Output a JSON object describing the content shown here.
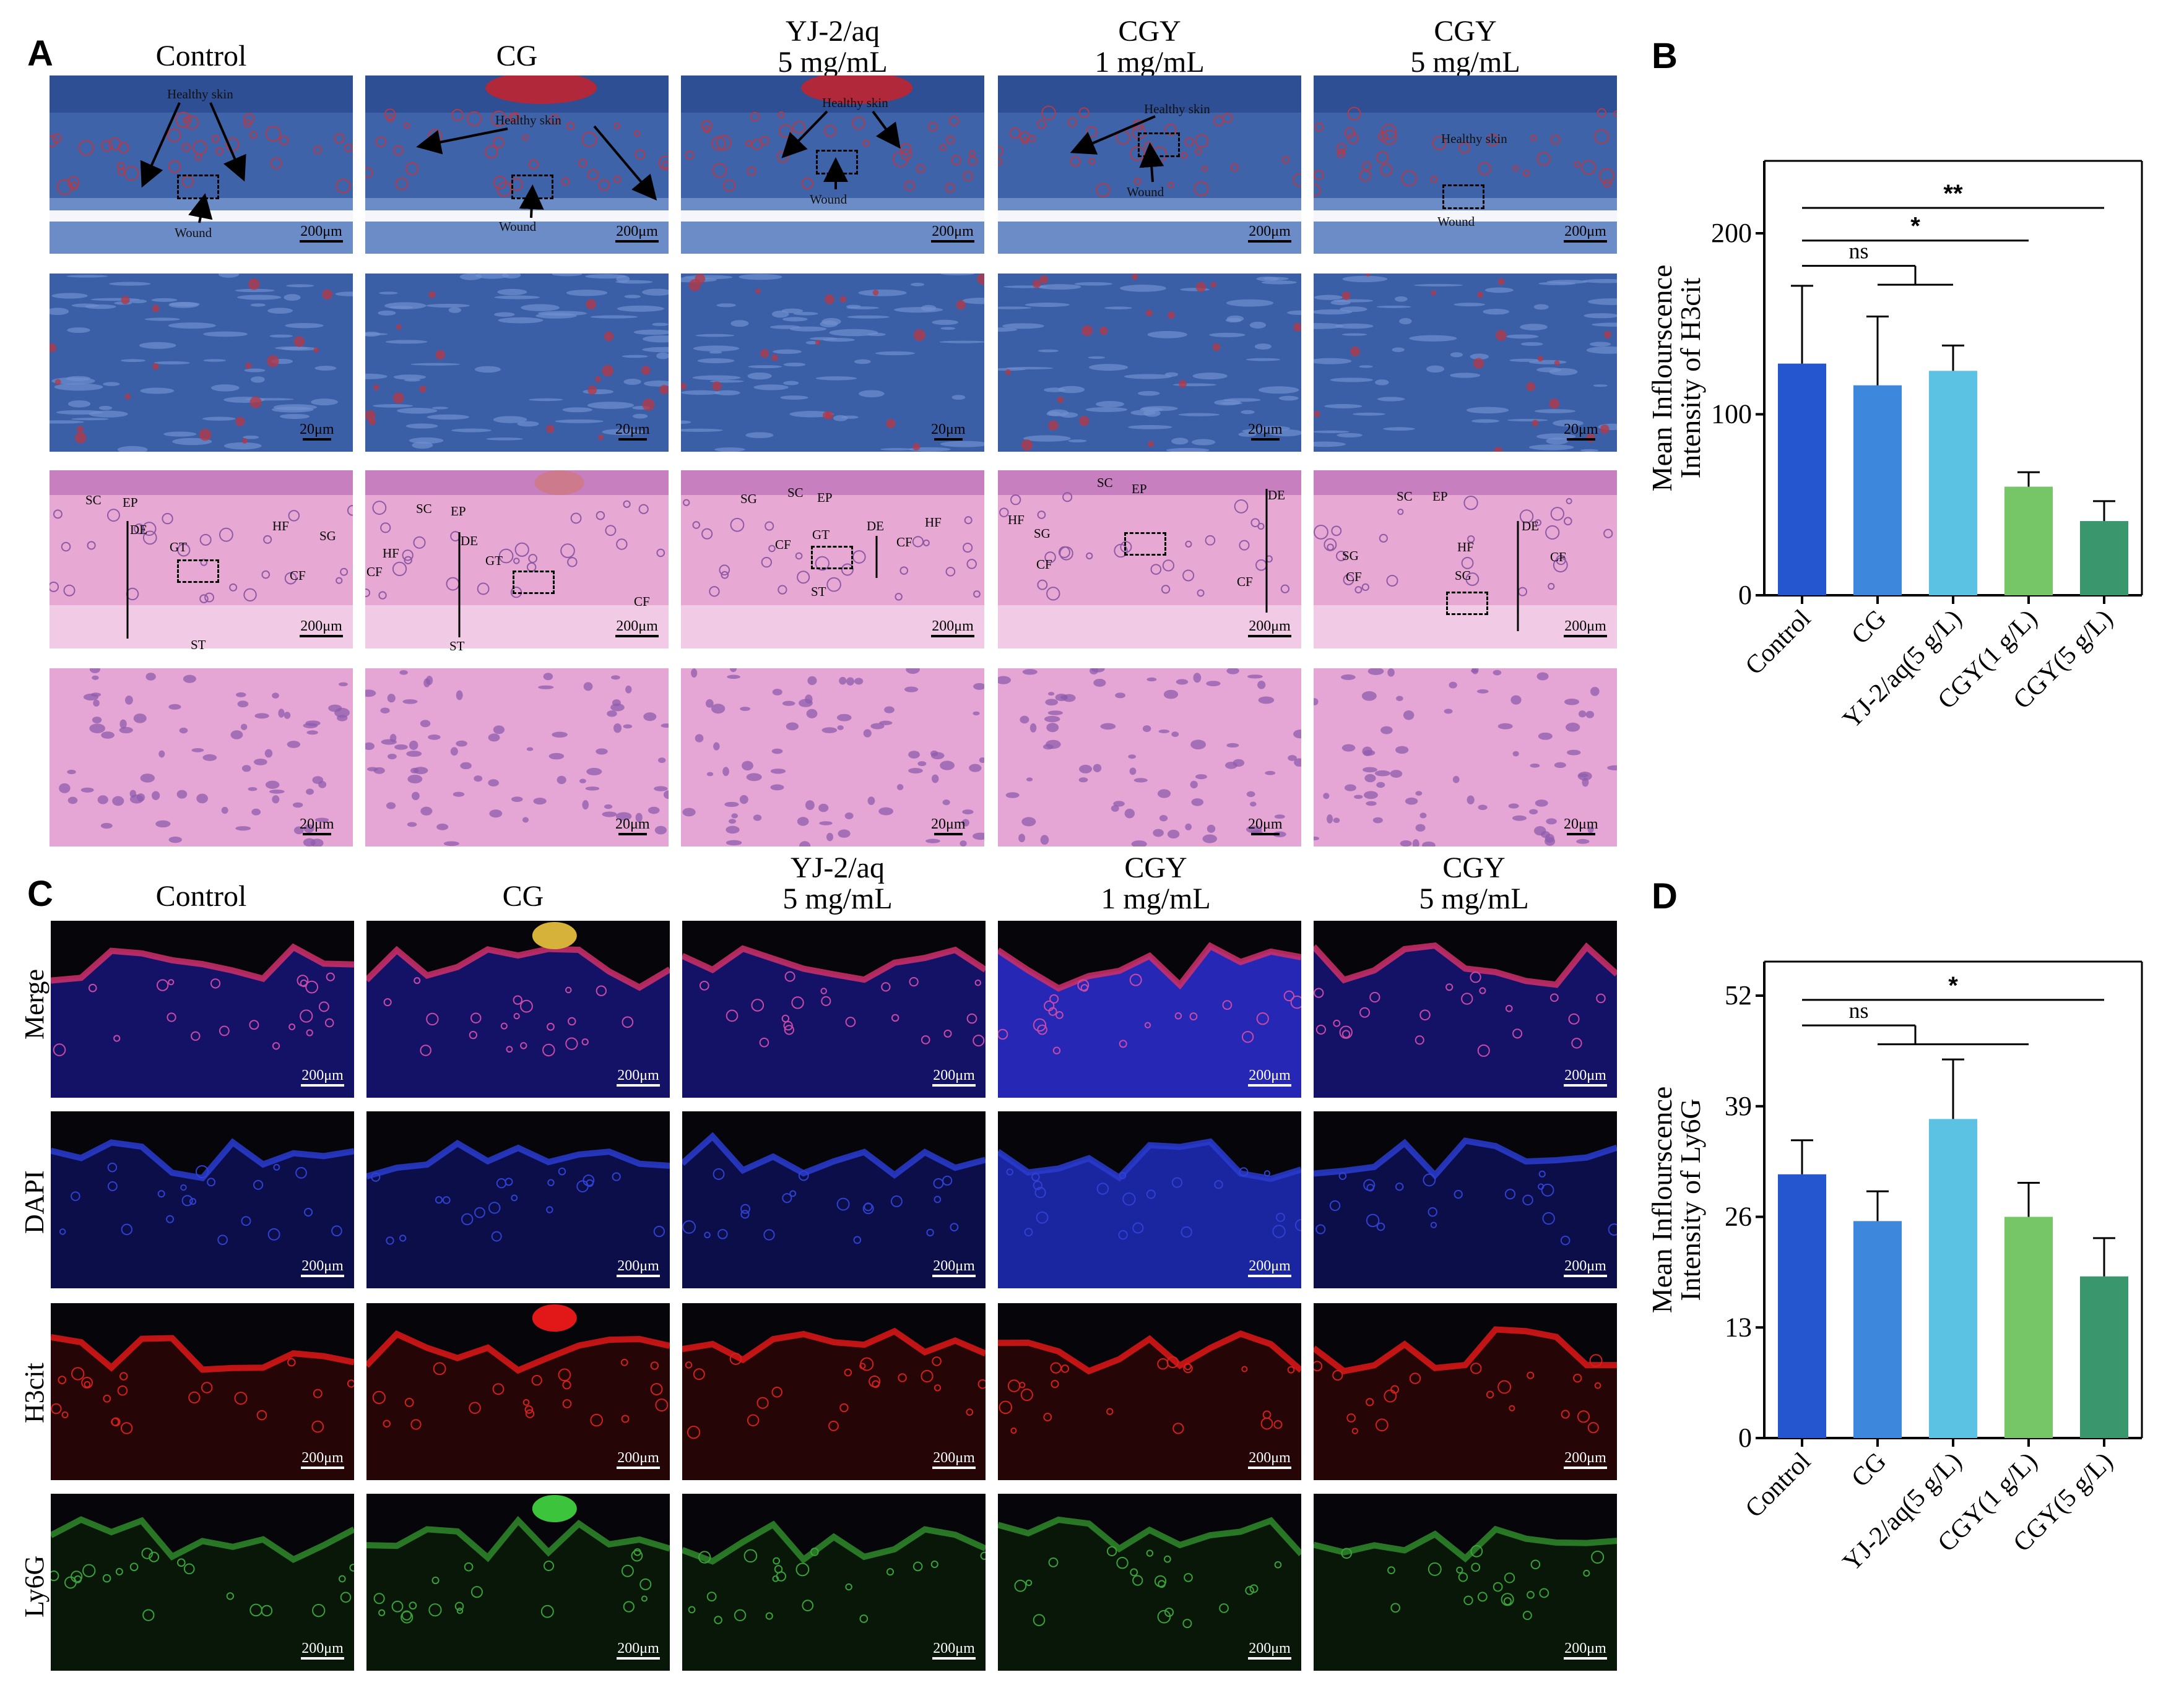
{
  "panel_labels": {
    "a": "A",
    "b": "B",
    "c": "C",
    "d": "D"
  },
  "columns": [
    {
      "line1": "Control",
      "line2": ""
    },
    {
      "line1": "CG",
      "line2": ""
    },
    {
      "line1": "YJ-2/aq",
      "line2": "5 mg/mL"
    },
    {
      "line1": "CGY",
      "line2": "1 mg/mL"
    },
    {
      "line1": "CGY",
      "line2": "5 mg/mL"
    }
  ],
  "scalebars": {
    "low": "200μm",
    "high": "20μm"
  },
  "annotations": {
    "healthy_skin": "Healthy skin",
    "wound": "Wound",
    "sc": "SC",
    "ep": "EP",
    "de": "DE",
    "gt": "GT",
    "hf": "HF",
    "sg": "SG",
    "cf": "CF",
    "st": "ST"
  },
  "row_labels_c": [
    "Merge",
    "DAPI",
    "H3cit",
    "Ly6G"
  ],
  "colors": {
    "control": "#2555cf",
    "cg": "#3d87dc",
    "yj": "#5cc2e3",
    "cgy1": "#76c667",
    "cgy5": "#3a966d",
    "masson_blue": "#3f63a8",
    "he_pink": "#e8a8d4"
  },
  "chart_data": [
    {
      "type": "bar",
      "panel": "B",
      "ylabel_line1": "Mean Inflourscence",
      "ylabel_line2": "Intensity of H3cit",
      "categories": [
        "Control",
        "CG",
        "YJ-2/aq(5 g/L)",
        "CGY(1 g/L)",
        "CGY(5 g/L)"
      ],
      "values": [
        128,
        116,
        124,
        60,
        41
      ],
      "errors": [
        43,
        38,
        14,
        8,
        11
      ],
      "ylim": [
        0,
        240
      ],
      "yticks": [
        0,
        100,
        200
      ],
      "significance": [
        {
          "label": "**",
          "from": 0,
          "to": 4,
          "level": 214
        },
        {
          "label": "*",
          "from": 0,
          "to": 3,
          "level": 196
        },
        {
          "label": "ns",
          "from": 0,
          "to": 2,
          "level": 182,
          "grouped": true
        }
      ]
    },
    {
      "type": "bar",
      "panel": "D",
      "ylabel_line1": "Mean Inflourscence",
      "ylabel_line2": "Intensity of Ly6G",
      "categories": [
        "Control",
        "CG",
        "YJ-2/aq(5 g/L)",
        "CGY(1 g/L)",
        "CGY(5 g/L)"
      ],
      "values": [
        31,
        25.5,
        37.5,
        26,
        19
      ],
      "errors": [
        4,
        3.5,
        7,
        4,
        4.5
      ],
      "ylim": [
        0,
        56
      ],
      "yticks": [
        0,
        13,
        26,
        39,
        52
      ],
      "significance": [
        {
          "label": "*",
          "from": 0,
          "to": 4,
          "level": 51.5
        },
        {
          "label": "ns",
          "from": 0,
          "to": 3,
          "level": 48.5,
          "grouped": true
        }
      ]
    }
  ]
}
